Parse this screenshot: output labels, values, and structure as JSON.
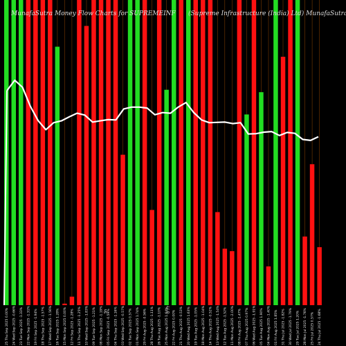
{
  "chart_data": {
    "type": "bar",
    "title": "MunafaSutra Money Flow Charts for SUPREMEINF",
    "title_right": "(Supreme Infrastructure (India) Ltd) MunafaSutra.com",
    "ylim": [
      0,
      100
    ],
    "colors": {
      "up": "#22dd22",
      "down": "#ff1111",
      "line": "#ffffff",
      "grid": "#7a3a00",
      "background": "#000000"
    },
    "categories": [
      "25 Thu Sep 2025 0.00%",
      "24 Wed Sep 2025 -0.66%",
      "23 Tue Sep 2025 -1.33%",
      "22 Mon Sep 2025 -1.31%",
      "19 Fri Sep 2025 -1.94%",
      "18 Thu Sep 2025 -1.57%",
      "17 Wed Sep 2025 -1.56%",
      "16 Tue Sep 2025 1.28%",
      "15 Mon Sep 2025 0.00%",
      "12 Fri Sep 2025 -1.28%",
      "11 Thu Sep 2025 -1.25%",
      "10 Wed Sep 2025 -1.83%",
      "09 Tue Sep 2025 -1.21%",
      "08 Mon Sep 2025 -1.19%",
      "05 Fri Sep 2025 -0.59%",
      "04 Thu Sep 2025 -1.16%",
      "03 Wed Sep 2025 -0.57%",
      "02 Tue Sep 2025 0.57%",
      "01 Mon Sep 2025 1.74%",
      "29 Fri Aug 2025 -0.56%",
      "28 Thu Aug 2025 -1.11%",
      "26 Tue Aug 2025 -1.10%",
      "25 Mon Aug 2025 1.64%",
      "22 Fri Aug 2025 0.00%",
      "21 Thu Aug 2025 -0.53%",
      "20 Wed Aug 2025 1.63%",
      "19 Tue Aug 2025 -1.05%",
      "18 Mon Aug 2025 -1.04%",
      "14 Thu Aug 2025 -0.52%",
      "13 Wed Aug 2025 -1.54%",
      "12 Tue Aug 2025 -1.52%",
      "11 Mon Aug 2025 -2.00%",
      "08 Fri Aug 2025 -1.47%",
      "07 Thu Aug 2025 0.97%",
      "06 Wed Aug 2025 -1.91%",
      "05 Tue Aug 2025 1.90%",
      "04 Mon Aug 2025 -1.40%",
      "01 Fri Aug 2025 1.85%",
      "31 Thu Jul 2025 -1.82%",
      "30 Wed Jul 2025 -1.79%",
      "29 Tue Jul 2025 1.20%",
      "28 Mon Jul 2025 -1.76%",
      "25 Fri Jul 2025 0.57%",
      "24 Thu Jul 2025 -1.68%"
    ],
    "bar_colors": [
      "up",
      "up",
      "up",
      "down",
      "down",
      "down",
      "down",
      "up",
      "down",
      "down",
      "down",
      "down",
      "down",
      "down",
      "down",
      "down",
      "down",
      "up",
      "up",
      "down",
      "down",
      "down",
      "up",
      "up",
      "down",
      "up",
      "down",
      "down",
      "down",
      "down",
      "down",
      "down",
      "down",
      "up",
      "down",
      "up",
      "down",
      "up",
      "down",
      "down",
      "up",
      "down",
      "down",
      "down"
    ],
    "bar_heights": [
      100,
      100,
      100,
      100,
      100,
      100,
      100,
      84.7,
      0.5,
      2.8,
      100,
      91.5,
      100,
      100,
      100,
      100,
      49.3,
      100,
      100,
      100,
      31.2,
      100,
      70.6,
      100,
      100,
      100,
      100,
      100,
      100,
      30.5,
      18.5,
      17.7,
      100,
      62.5,
      100,
      69.8,
      12.7,
      100,
      81.4,
      100,
      100,
      22.5,
      46.2,
      19.0
    ],
    "line_values": [
      70.3,
      73.7,
      71.4,
      65.2,
      60.5,
      57.5,
      59.8,
      60.4,
      61.7,
      62.9,
      62.3,
      60.0,
      60.4,
      60.8,
      60.7,
      64.3,
      64.9,
      64.9,
      64.6,
      62.4,
      63.1,
      62.9,
      64.9,
      66.4,
      63.1,
      60.7,
      59.8,
      59.9,
      60.0,
      59.5,
      59.8,
      56.1,
      56.2,
      56.7,
      56.9,
      55.6,
      56.6,
      56.3,
      54.3,
      54.0,
      55.2
    ],
    "watermark_label": "Sh",
    "watermark_value": "0 77"
  }
}
